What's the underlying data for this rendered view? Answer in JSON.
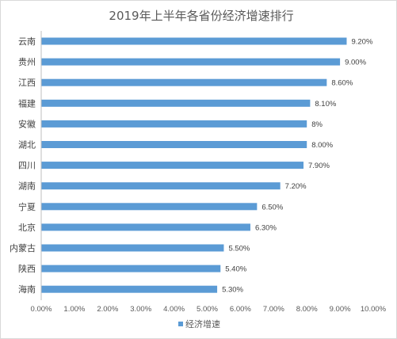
{
  "chart_data": {
    "type": "bar",
    "orientation": "horizontal",
    "title": "2019年上半年各省份经济增速排行",
    "categories": [
      "云南",
      "贵州",
      "江西",
      "福建",
      "安徽",
      "湖北",
      "四川",
      "湖南",
      "宁夏",
      "北京",
      "内蒙古",
      "陕西",
      "海南"
    ],
    "series": [
      {
        "name": "经济增速",
        "color": "#5b9bd5",
        "values": [
          9.2,
          9.0,
          8.6,
          8.1,
          8.0,
          8.0,
          7.9,
          7.2,
          6.5,
          6.3,
          5.5,
          5.4,
          5.3
        ],
        "labels": [
          "9.20%",
          "9.00%",
          "8.60%",
          "8.10%",
          "8%",
          "8.00%",
          "7.90%",
          "7.20%",
          "6.50%",
          "6.30%",
          "5.50%",
          "5.40%",
          "5.30%"
        ]
      }
    ],
    "xlim": [
      0,
      10
    ],
    "x_ticks": [
      "0.00%",
      "1.00%",
      "2.00%",
      "3.00%",
      "4.00%",
      "5.00%",
      "6.00%",
      "7.00%",
      "8.00%",
      "9.00%",
      "10.00%"
    ],
    "grid": false,
    "legend_position": "bottom"
  }
}
